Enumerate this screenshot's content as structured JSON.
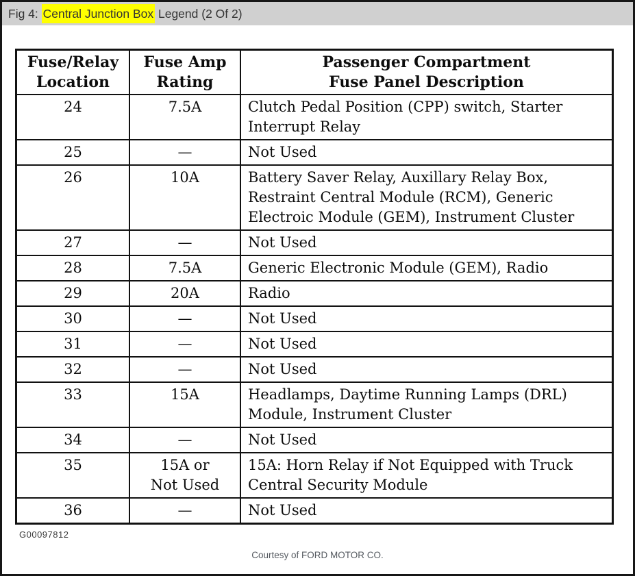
{
  "viewer": {
    "title_prefix": "Fig 4: ",
    "title_highlight": "Central Junction Box",
    "title_suffix": " Legend (2 Of 2)",
    "highlight_color": "#ffff00",
    "titlebar_bg": "#d0d0d0"
  },
  "table": {
    "headers": {
      "location": "Fuse/Relay\nLocation",
      "rating": "Fuse Amp\nRating",
      "description": "Passenger Compartment\nFuse Panel Description"
    },
    "rows": [
      {
        "location": "24",
        "rating": "7.5A",
        "description": "Clutch Pedal Position (CPP) switch, Starter Interrupt Relay"
      },
      {
        "location": "25",
        "rating": "—",
        "description": "Not Used"
      },
      {
        "location": "26",
        "rating": "10A",
        "description": "Battery Saver Relay, Auxillary Relay Box, Restraint Central Module (RCM), Generic Electroic Module (GEM), Instrument Cluster"
      },
      {
        "location": "27",
        "rating": "—",
        "description": "Not Used"
      },
      {
        "location": "28",
        "rating": "7.5A",
        "description": "Generic Electronic Module (GEM), Radio"
      },
      {
        "location": "29",
        "rating": "20A",
        "description": "Radio"
      },
      {
        "location": "30",
        "rating": "—",
        "description": "Not Used"
      },
      {
        "location": "31",
        "rating": "—",
        "description": "Not Used"
      },
      {
        "location": "32",
        "rating": "—",
        "description": "Not Used"
      },
      {
        "location": "33",
        "rating": "15A",
        "description": "Headlamps, Daytime Running Lamps (DRL) Module, Instrument Cluster"
      },
      {
        "location": "34",
        "rating": "—",
        "description": "Not Used"
      },
      {
        "location": "35",
        "rating": "15A or\nNot Used",
        "description": "15A: Horn Relay if Not Equipped with Truck Central Security Module"
      },
      {
        "location": "36",
        "rating": "—",
        "description": "Not Used"
      }
    ]
  },
  "footer": {
    "figure_id": "G00097812",
    "courtesy": "Courtesy of FORD MOTOR CO."
  }
}
